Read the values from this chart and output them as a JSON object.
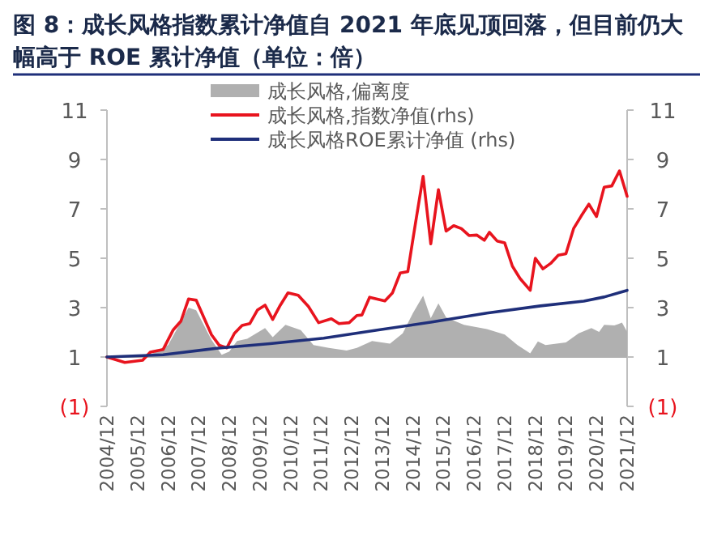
{
  "chart_data": {
    "type": "line",
    "title": "图 8：成长风格指数累计净值自 2021 年底见顶回落，但目前仍大幅高于 ROE 累计净值（单位：倍）",
    "xlim": [
      "2004-12",
      "2021-12"
    ],
    "xticks": [
      {
        "value": "2004-12",
        "label": "2004/12"
      },
      {
        "value": "2005-12",
        "label": "2005/12"
      },
      {
        "value": "2006-12",
        "label": "2006/12"
      },
      {
        "value": "2007-12",
        "label": "2007/12"
      },
      {
        "value": "2008-12",
        "label": "2008/12"
      },
      {
        "value": "2009-12",
        "label": "2009/12"
      },
      {
        "value": "2010-12",
        "label": "2010/12"
      },
      {
        "value": "2011-12",
        "label": "2011/12"
      },
      {
        "value": "2012-12",
        "label": "2012/12"
      },
      {
        "value": "2013-12",
        "label": "2013/12"
      },
      {
        "value": "2014-12",
        "label": "2014/12"
      },
      {
        "value": "2015-12",
        "label": "2015/12"
      },
      {
        "value": "2016-12",
        "label": "2016/12"
      },
      {
        "value": "2017-12",
        "label": "2017/12"
      },
      {
        "value": "2018-12",
        "label": "2018/12"
      },
      {
        "value": "2019-12",
        "label": "2019/12"
      },
      {
        "value": "2020-12",
        "label": "2020/12"
      },
      {
        "value": "2021-12",
        "label": "2021/12"
      }
    ],
    "ylim": [
      -1,
      11
    ],
    "yticks": [
      {
        "value": -1,
        "label": "(1)"
      },
      1,
      3,
      5,
      7,
      9,
      11
    ],
    "y2lim": [
      -1,
      11
    ],
    "y2ticks": [
      {
        "value": -1,
        "label": "(1)"
      },
      1,
      3,
      5,
      7,
      9,
      11
    ],
    "legend": "top",
    "grid": false,
    "ref_lines": [
      {
        "axis": "y",
        "value": 1,
        "color": "#b0b0b0"
      }
    ],
    "series": [
      {
        "name": "成长风格,偏离度",
        "type": "area",
        "color": "#b0b0b0",
        "x": [
          "2004-12",
          "2006-05",
          "2006-12",
          "2007-04",
          "2007-08",
          "2007-11",
          "2008-05",
          "2008-09",
          "2008-12",
          "2009-03",
          "2009-07",
          "2010-02",
          "2010-05",
          "2010-10",
          "2011-04",
          "2011-09",
          "2012-03",
          "2012-10",
          "2013-02",
          "2013-08",
          "2014-03",
          "2014-08",
          "2014-12",
          "2015-04",
          "2015-07",
          "2015-10",
          "2016-01",
          "2016-08",
          "2017-05",
          "2017-12",
          "2018-05",
          "2018-10",
          "2019-01",
          "2019-04",
          "2019-12",
          "2020-05",
          "2020-10",
          "2021-01",
          "2021-03",
          "2021-07",
          "2021-10",
          "2021-12"
        ],
        "values": [
          1.0,
          1.09,
          1.48,
          2.24,
          3.0,
          2.89,
          1.7,
          1.09,
          1.22,
          1.65,
          1.74,
          2.17,
          1.8,
          2.3,
          2.09,
          1.48,
          1.37,
          1.26,
          1.37,
          1.65,
          1.54,
          1.96,
          2.78,
          3.48,
          2.57,
          3.17,
          2.61,
          2.3,
          2.13,
          1.91,
          1.48,
          1.15,
          1.63,
          1.48,
          1.59,
          1.96,
          2.17,
          2.02,
          2.3,
          2.28,
          2.39,
          2.02
        ]
      },
      {
        "name": "成长风格,指数净值(rhs)",
        "type": "line",
        "color": "#e8141e",
        "x": [
          "2004-12",
          "2005-07",
          "2006-02",
          "2006-05",
          "2006-10",
          "2007-02",
          "2007-05",
          "2007-08",
          "2007-11",
          "2008-05",
          "2008-08",
          "2008-11",
          "2009-02",
          "2009-05",
          "2009-08",
          "2009-11",
          "2010-02",
          "2010-05",
          "2010-08",
          "2010-11",
          "2011-03",
          "2011-07",
          "2011-11",
          "2012-04",
          "2012-07",
          "2012-11",
          "2013-02",
          "2013-04",
          "2013-07",
          "2014-01",
          "2014-04",
          "2014-07",
          "2014-10",
          "2015-01",
          "2015-04",
          "2015-07",
          "2015-10",
          "2016-01",
          "2016-04",
          "2016-07",
          "2016-10",
          "2017-01",
          "2017-04",
          "2017-06",
          "2017-09",
          "2017-12",
          "2018-03",
          "2018-06",
          "2018-10",
          "2018-12",
          "2019-03",
          "2019-06",
          "2019-09",
          "2019-12",
          "2020-03",
          "2020-06",
          "2020-09",
          "2020-12",
          "2021-03",
          "2021-06",
          "2021-09",
          "2021-12"
        ],
        "values": [
          1.0,
          0.78,
          0.87,
          1.2,
          1.3,
          2.1,
          2.45,
          3.35,
          3.3,
          1.9,
          1.48,
          1.37,
          1.96,
          2.28,
          2.35,
          2.9,
          3.1,
          2.52,
          3.1,
          3.6,
          3.5,
          3.05,
          2.39,
          2.55,
          2.35,
          2.39,
          2.68,
          2.7,
          3.42,
          3.27,
          3.6,
          4.4,
          4.46,
          6.42,
          8.32,
          5.58,
          7.78,
          6.1,
          6.32,
          6.2,
          5.92,
          5.94,
          5.73,
          6.05,
          5.7,
          5.62,
          4.68,
          4.18,
          3.7,
          5.0,
          4.57,
          4.79,
          5.12,
          5.18,
          6.2,
          6.71,
          7.19,
          6.69,
          7.88,
          7.93,
          8.54,
          7.51
        ]
      },
      {
        "name": "成长风格ROE累计净值 (rhs)",
        "type": "line",
        "color": "#1f2f7a",
        "x": [
          "2004-12",
          "2006-10",
          "2008-07",
          "2010-04",
          "2012-01",
          "2013-10",
          "2015-07",
          "2017-05",
          "2019-02",
          "2020-07",
          "2021-03",
          "2021-12"
        ],
        "values": [
          1.0,
          1.09,
          1.35,
          1.54,
          1.76,
          2.09,
          2.41,
          2.78,
          3.07,
          3.26,
          3.43,
          3.7
        ]
      }
    ]
  }
}
